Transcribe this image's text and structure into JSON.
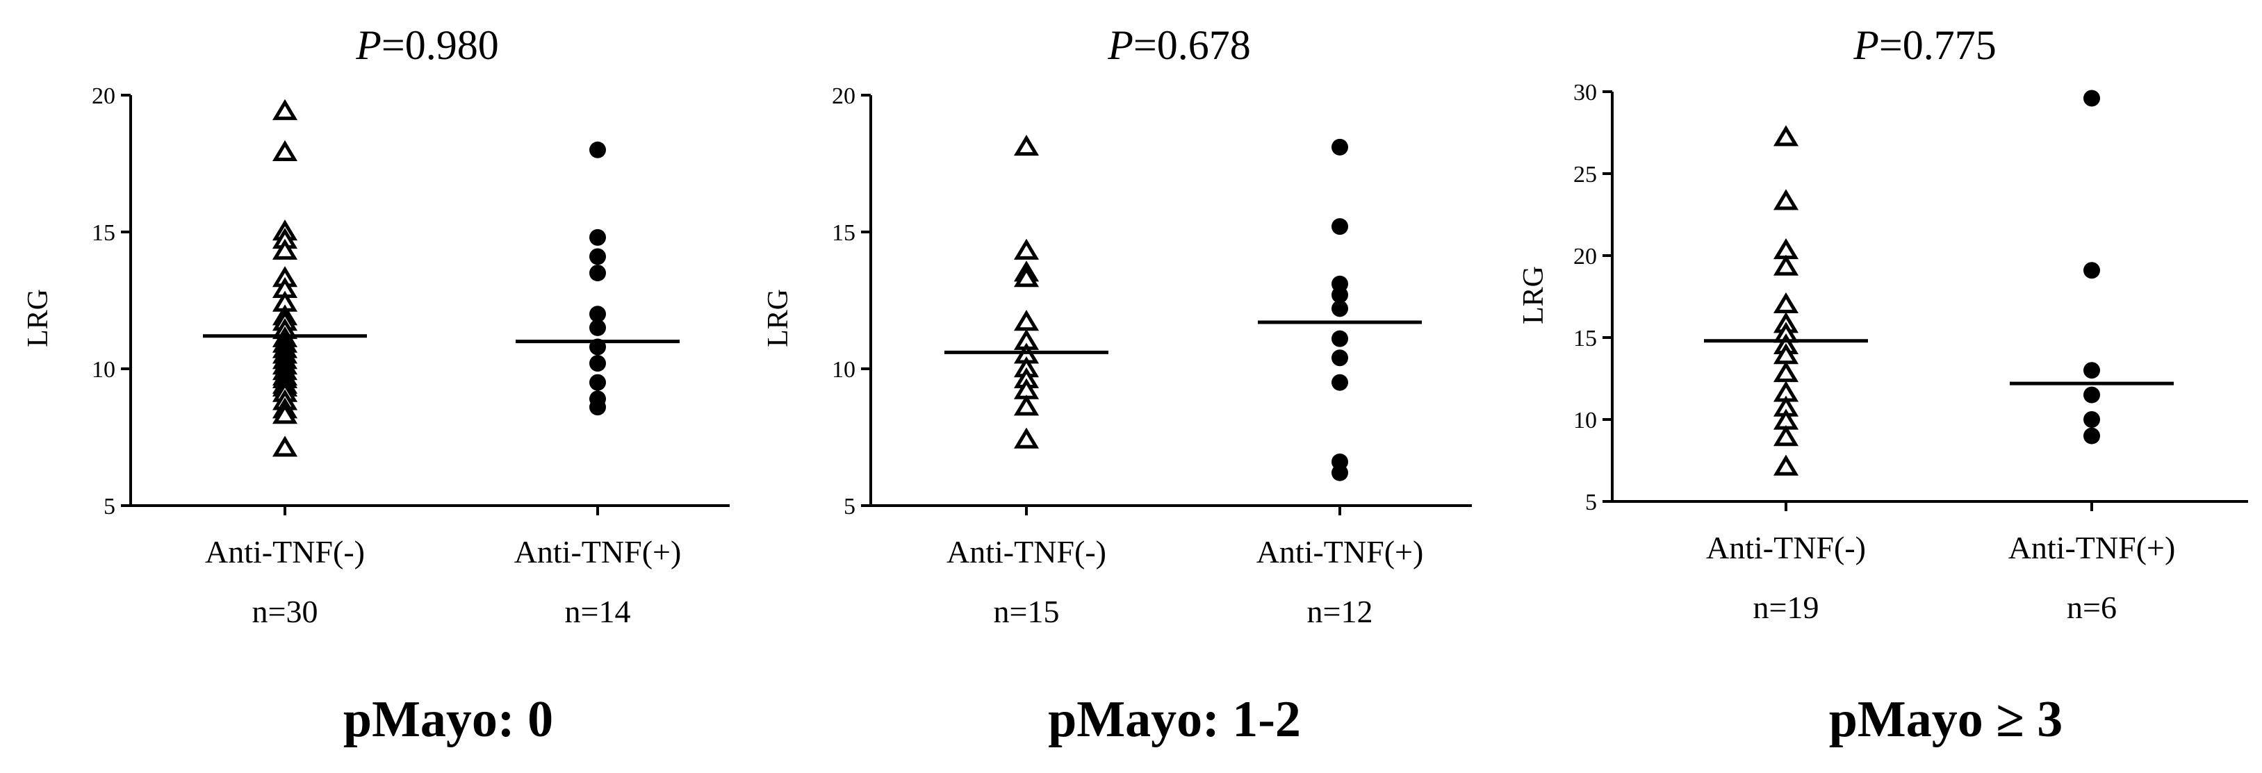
{
  "chart_data": [
    {
      "type": "scatter",
      "title": "pMayo: 0",
      "p_prefix": "P",
      "p_value": "=0.980",
      "ylabel": "LRG",
      "ylim": [
        5,
        20
      ],
      "yticks": [
        5,
        10,
        15,
        20
      ],
      "categories": [
        "Anti-TNF(-)",
        "Anti-TNF(+)"
      ],
      "n_labels": [
        "n=30",
        "n=14"
      ],
      "markers": [
        "triangle-open",
        "circle-filled"
      ],
      "series": [
        {
          "values": [
            19.4,
            17.9,
            15.0,
            14.7,
            14.3,
            13.3,
            12.9,
            12.4,
            11.9,
            11.7,
            11.4,
            11.1,
            10.9,
            10.7,
            10.5,
            10.3,
            10.1,
            9.9,
            9.7,
            9.6,
            9.4,
            9.3,
            9.1,
            8.8,
            8.5,
            8.3,
            7.1
          ],
          "median": 11.2
        },
        {
          "values": [
            18.0,
            14.8,
            14.1,
            13.5,
            12.0,
            11.5,
            10.8,
            10.2,
            9.5,
            8.9,
            8.6
          ],
          "median": 11.0
        }
      ]
    },
    {
      "type": "scatter",
      "title": "pMayo: 1-2",
      "p_prefix": "P",
      "p_value": "=0.678",
      "ylabel": "LRG",
      "ylim": [
        5,
        20
      ],
      "yticks": [
        5,
        10,
        15,
        20
      ],
      "categories": [
        "Anti-TNF(-)",
        "Anti-TNF(+)"
      ],
      "n_labels": [
        "n=15",
        "n=12"
      ],
      "markers": [
        "triangle-open",
        "circle-filled"
      ],
      "series": [
        {
          "values": [
            18.1,
            14.3,
            13.5,
            13.3,
            11.7,
            11.0,
            10.5,
            10.0,
            9.6,
            9.2,
            8.6,
            7.4
          ],
          "median": 10.6
        },
        {
          "values": [
            18.1,
            15.2,
            13.1,
            12.7,
            12.2,
            11.1,
            10.4,
            9.5,
            6.6,
            6.2
          ],
          "median": 11.7
        }
      ]
    },
    {
      "type": "scatter",
      "title": "pMayo ≥ 3",
      "p_prefix": "P",
      "p_value": "=0.775",
      "ylabel": "LRG",
      "ylim": [
        5,
        30
      ],
      "yticks": [
        5,
        10,
        15,
        20,
        25,
        30
      ],
      "categories": [
        "Anti-TNF(-)",
        "Anti-TNF(+)"
      ],
      "n_labels": [
        "n=19",
        "n=6"
      ],
      "markers": [
        "triangle-open",
        "circle-filled"
      ],
      "series": [
        {
          "values": [
            27.2,
            23.3,
            20.3,
            19.3,
            17.0,
            15.8,
            15.2,
            14.5,
            13.9,
            12.8,
            11.6,
            10.7,
            9.9,
            8.9,
            7.1
          ],
          "median": 14.8
        },
        {
          "values": [
            29.6,
            19.1,
            13.0,
            11.5,
            10.0,
            9.0
          ],
          "median": 12.2
        }
      ]
    }
  ]
}
